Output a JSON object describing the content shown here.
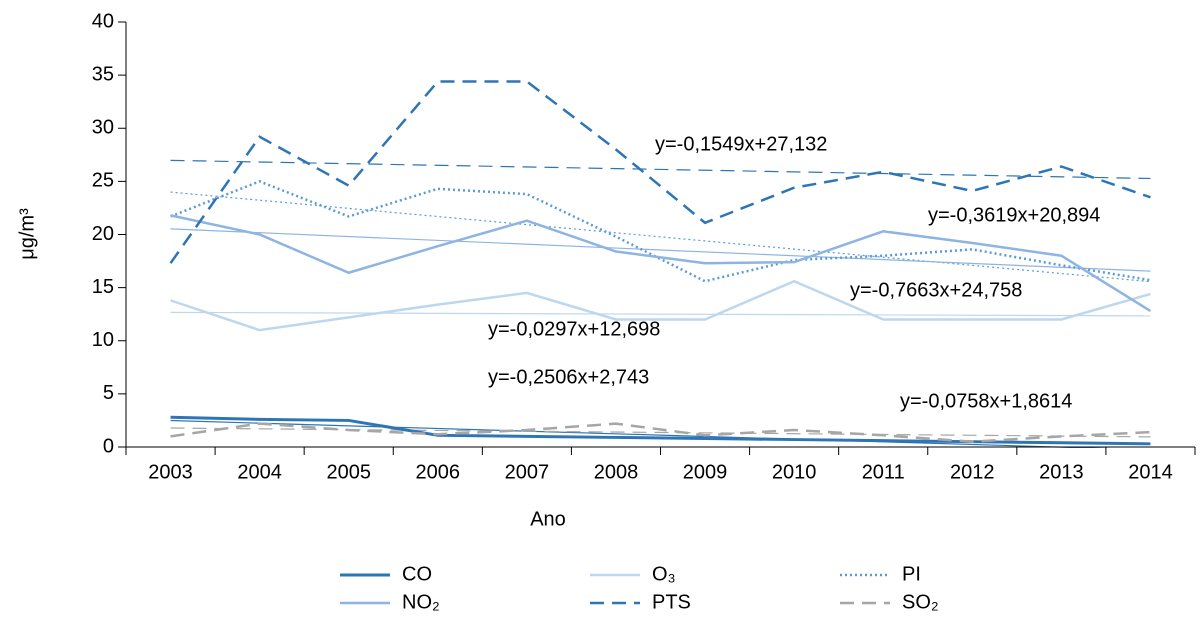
{
  "chart_data": {
    "type": "line",
    "x_label": "Ano",
    "y_label": "μg/m³",
    "categories": [
      "2003",
      "2004",
      "2005",
      "2006",
      "2007",
      "2008",
      "2009",
      "2010",
      "2011",
      "2012",
      "2013",
      "2014"
    ],
    "ylim": [
      0,
      40
    ],
    "yticks": [
      0,
      5,
      10,
      15,
      20,
      25,
      30,
      35,
      40
    ],
    "series": [
      {
        "name": "CO",
        "color": "#2e75b6",
        "dash": "solid",
        "width": 3,
        "values": [
          2.8,
          2.6,
          2.5,
          1.1,
          1.0,
          0.9,
          0.8,
          0.7,
          0.6,
          0.5,
          0.4,
          0.3
        ],
        "trend": {
          "slope": -0.2506,
          "intercept": 2.743,
          "label": "y=-0,2506x+2,743"
        }
      },
      {
        "name": "O₃",
        "color": "#bdd7ee",
        "dash": "solid",
        "width": 2.5,
        "values": [
          13.8,
          11.0,
          12.2,
          13.4,
          14.5,
          12.0,
          12.0,
          15.6,
          12.0,
          12.0,
          12.0,
          14.4
        ],
        "trend": {
          "slope": -0.0297,
          "intercept": 12.698,
          "label": "y=-0,0297x+12,698"
        }
      },
      {
        "name": "PI",
        "color": "#5b9bd5",
        "dash": "dotted",
        "width": 2.5,
        "values": [
          21.7,
          25.0,
          21.7,
          24.3,
          23.8,
          19.8,
          15.6,
          17.6,
          18.0,
          18.6,
          17.1,
          15.7
        ],
        "trend": {
          "slope": -0.7663,
          "intercept": 24.758,
          "label": "y=-0,7663x+24,758"
        }
      },
      {
        "name": "NO₂",
        "color": "#8eb4e3",
        "dash": "solid",
        "width": 2.5,
        "values": [
          21.8,
          20.0,
          16.4,
          18.9,
          21.3,
          18.4,
          17.3,
          17.4,
          20.3,
          19.2,
          18.0,
          12.8
        ],
        "trend": {
          "slope": -0.3619,
          "intercept": 20.894,
          "label": "y=-0,3619x+20,894"
        }
      },
      {
        "name": "PTS",
        "color": "#2e75b6",
        "dash": "dashed",
        "width": 2.5,
        "values": [
          17.3,
          29.2,
          24.6,
          34.4,
          34.4,
          28.0,
          21.1,
          24.4,
          25.9,
          24.1,
          26.4,
          23.5
        ],
        "trend": {
          "slope": -0.1549,
          "intercept": 27.132,
          "label": "y=-0,1549x+27,132"
        }
      },
      {
        "name": "SO₂",
        "color": "#a6a6a6",
        "dash": "dashed",
        "width": 2.5,
        "values": [
          1.0,
          2.2,
          1.6,
          1.2,
          1.6,
          2.2,
          1.1,
          1.6,
          1.1,
          0.5,
          1.0,
          1.4
        ],
        "trend": {
          "slope": -0.0758,
          "intercept": 1.8614,
          "label": "y=-0,0758x+1,8614"
        }
      }
    ]
  }
}
